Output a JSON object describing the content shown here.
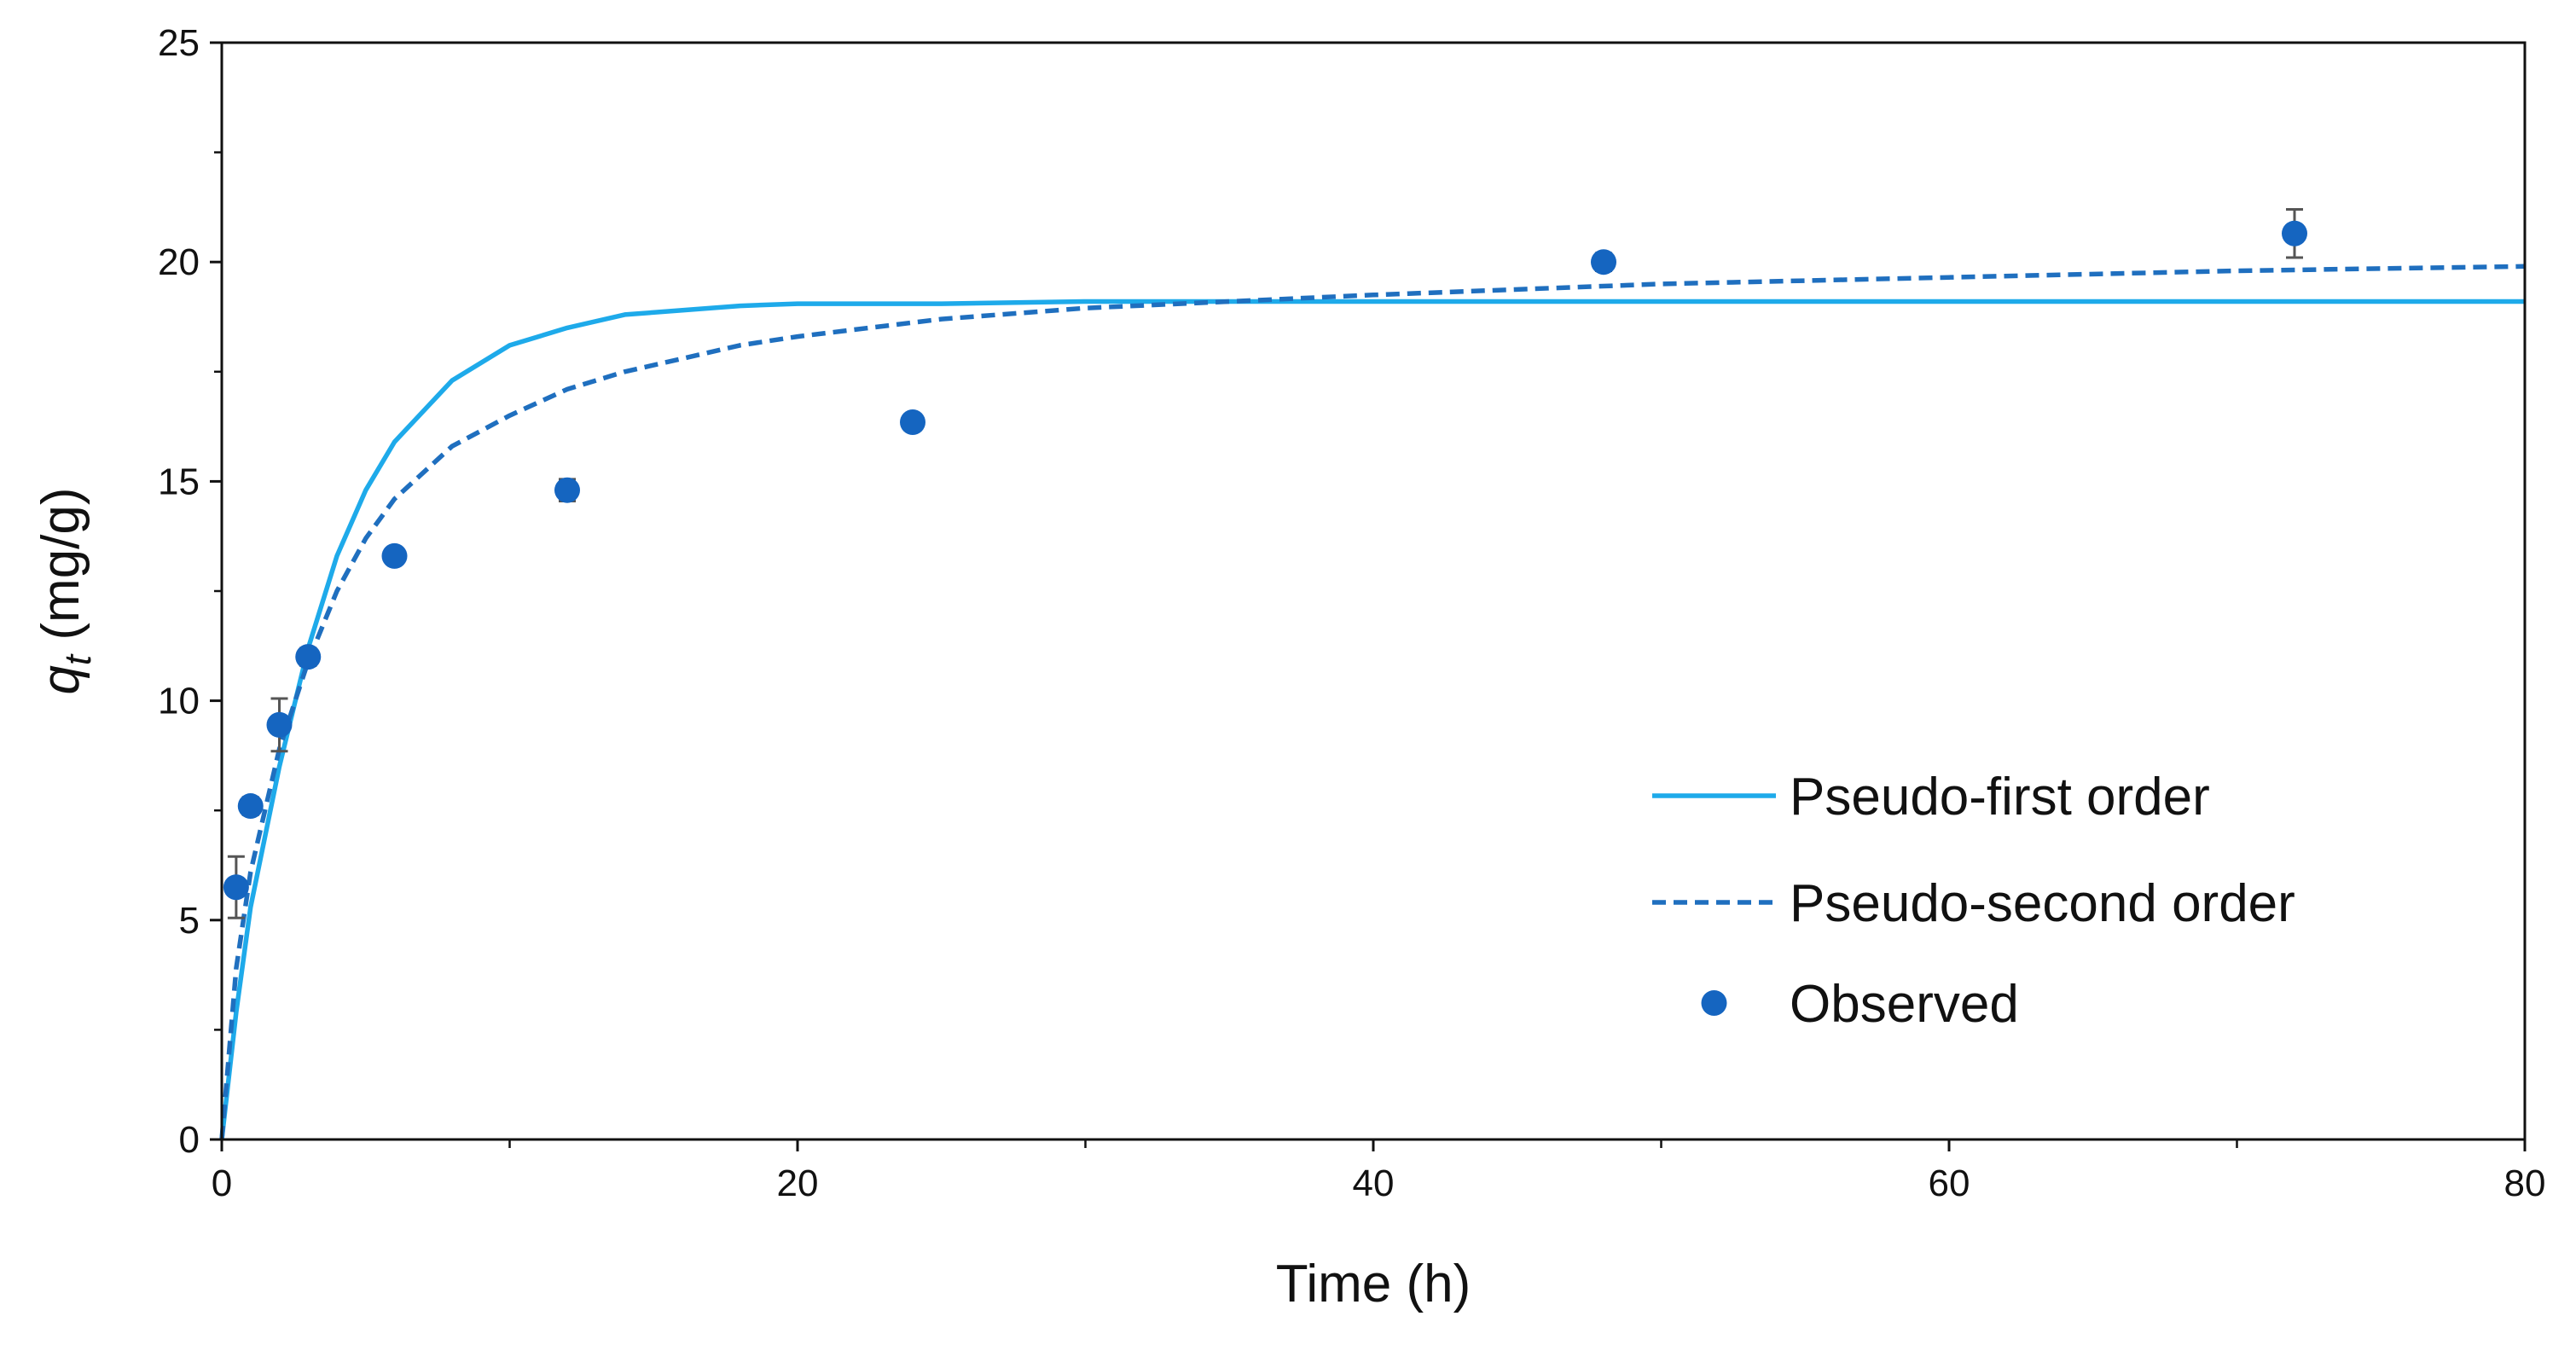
{
  "chart_data": {
    "type": "scatter",
    "title": "",
    "xlabel": "Time (h)",
    "ylabel_main": "q",
    "ylabel_sub": "t",
    "ylabel_unit": " (mg/g)",
    "xlim": [
      0,
      80
    ],
    "ylim": [
      0,
      25
    ],
    "x_ticks": [
      0,
      20,
      40,
      60,
      80
    ],
    "y_ticks": [
      0,
      5,
      10,
      15,
      20,
      25
    ],
    "x_tick_labels": [
      "0",
      "20",
      "40",
      "60",
      "80"
    ],
    "y_tick_labels": [
      "0",
      "5",
      "10",
      "15",
      "20",
      "25"
    ],
    "grid": false,
    "legend_position": "bottom-right",
    "colors": {
      "first_order": "#1EAAEA",
      "second_order": "#1F6FBF",
      "observed": "#1565C0",
      "axis": "#111111",
      "error_bar": "#555555"
    },
    "series": [
      {
        "name": "Pseudo-first order",
        "style": "solid",
        "x": [
          0,
          0.5,
          1,
          2,
          3,
          4,
          5,
          6,
          8,
          10,
          12,
          14,
          16,
          18,
          20,
          25,
          30,
          40,
          50,
          60,
          70,
          80
        ],
        "y": [
          0,
          2.9,
          5.3,
          8.5,
          11.2,
          13.3,
          14.8,
          15.9,
          17.3,
          18.1,
          18.5,
          18.8,
          18.9,
          19.0,
          19.05,
          19.05,
          19.1,
          19.1,
          19.1,
          19.1,
          19.1,
          19.1
        ]
      },
      {
        "name": "Pseudo-second order",
        "style": "dashed",
        "x": [
          0,
          0.5,
          1,
          2,
          3,
          4,
          5,
          6,
          8,
          10,
          12,
          14,
          16,
          18,
          20,
          25,
          30,
          35,
          40,
          50,
          60,
          70,
          80
        ],
        "y": [
          0,
          3.9,
          6.1,
          8.9,
          10.9,
          12.5,
          13.7,
          14.6,
          15.8,
          16.5,
          17.1,
          17.5,
          17.8,
          18.1,
          18.3,
          18.7,
          18.95,
          19.1,
          19.25,
          19.5,
          19.65,
          19.8,
          19.9
        ]
      },
      {
        "name": "Observed",
        "style": "markers",
        "points": [
          {
            "x": 0.5,
            "y": 5.75,
            "err": 0.7
          },
          {
            "x": 1,
            "y": 7.6,
            "err": 0.2
          },
          {
            "x": 2,
            "y": 9.45,
            "err": 0.6
          },
          {
            "x": 3,
            "y": 11.0,
            "err": 0.2
          },
          {
            "x": 6,
            "y": 13.3,
            "err": 0.1
          },
          {
            "x": 12,
            "y": 14.8,
            "err": 0.25
          },
          {
            "x": 24,
            "y": 16.35,
            "err": 0.1
          },
          {
            "x": 48,
            "y": 20.0,
            "err": 0.2
          },
          {
            "x": 72,
            "y": 20.65,
            "err": 0.55
          }
        ]
      }
    ]
  }
}
